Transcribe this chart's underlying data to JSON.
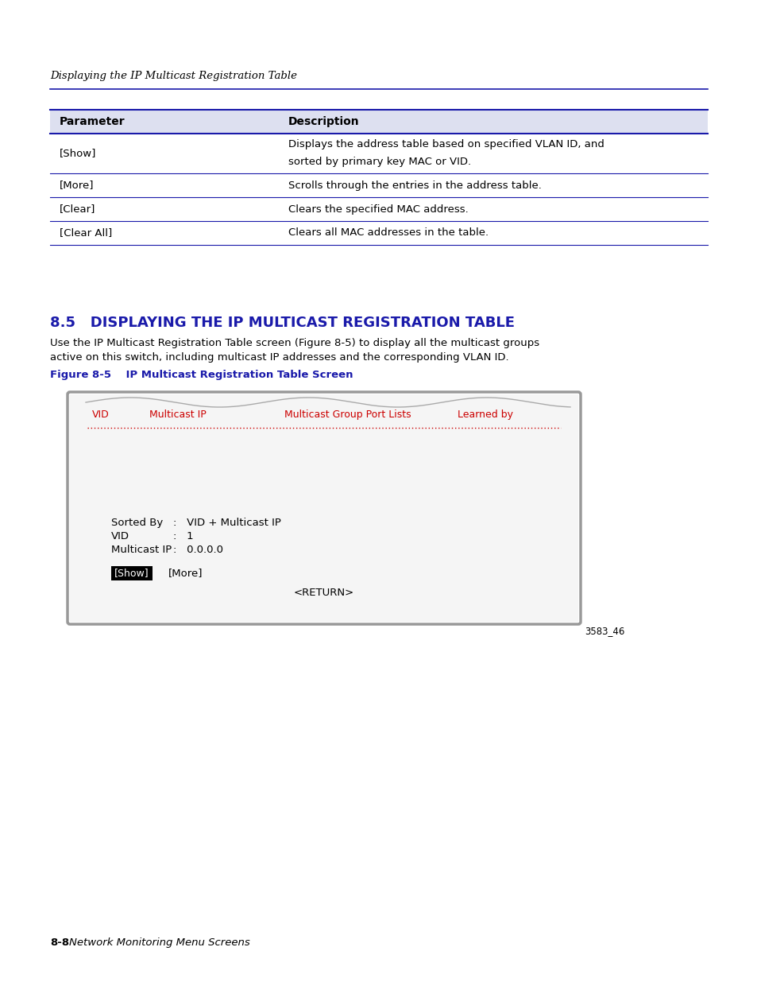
{
  "page_bg": "#ffffff",
  "header_italic_text": "Displaying the IP Multicast Registration Table",
  "header_line_color": "#1a1aaa",
  "table_header_bg": "#dde0f0",
  "table_border_color": "#1a1aaa",
  "table_row_line_color": "#1a1aaa",
  "table_rows": [
    {
      "param": "[Show]",
      "desc": "Displays the address table based on specified VLAN ID, and\nsorted by primary key MAC or VID."
    },
    {
      "param": "[More]",
      "desc": "Scrolls through the entries in the address table."
    },
    {
      "param": "[Clear]",
      "desc": "Clears the specified MAC address."
    },
    {
      "param": "[Clear All]",
      "desc": "Clears all MAC addresses in the table."
    }
  ],
  "section_heading": "8.5   DISPLAYING THE IP MULTICAST REGISTRATION TABLE",
  "section_heading_color": "#1a1aaa",
  "body_text_line1": "Use the IP Multicast Registration Table screen (Figure 8-5) to display all the multicast groups",
  "body_text_line2": "active on this switch, including multicast IP addresses and the corresponding VLAN ID.",
  "figure_caption": "Figure 8-5    IP Multicast Registration Table Screen",
  "figure_caption_color": "#1a1aaa",
  "screen_header_color": "#cc0000",
  "screen_col1": "VID",
  "screen_col2": "Multicast IP",
  "screen_col3": "Multicast Group Port Lists",
  "screen_col4": "Learned by",
  "screen_dashed_line_color": "#cc0000",
  "screen_show_label": "[Show]",
  "screen_more_label": "[More]",
  "screen_return_label": "<RETURN>",
  "fig_number_label": "3583_46",
  "footer_bold": "8-8",
  "footer_italic": "Network Monitoring Menu Screens"
}
